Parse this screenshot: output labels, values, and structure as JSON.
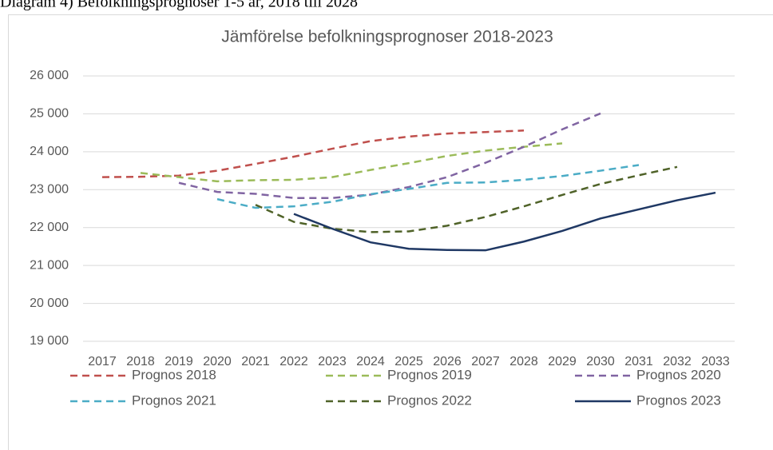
{
  "chart_data": {
    "type": "line",
    "caption": "Diagram 4) Befolkningsprognoser 1-5 år, 2018 till 2028",
    "title": "Jämförelse befolkningsprognoser 2018-2023",
    "categories": [
      "2017",
      "2018",
      "2019",
      "2020",
      "2021",
      "2022",
      "2023",
      "2024",
      "2025",
      "2026",
      "2027",
      "2028",
      "2029",
      "2030",
      "2031",
      "2032",
      "2033"
    ],
    "ylim": [
      19000,
      26000
    ],
    "yticks": [
      {
        "value": 19000,
        "label": "19 000"
      },
      {
        "value": 20000,
        "label": "20 000"
      },
      {
        "value": 21000,
        "label": "21 000"
      },
      {
        "value": 22000,
        "label": "22 000"
      },
      {
        "value": 23000,
        "label": "23 000"
      },
      {
        "value": 24000,
        "label": "24 000"
      },
      {
        "value": 25000,
        "label": "25 000"
      },
      {
        "value": 26000,
        "label": "26 000"
      }
    ],
    "grid": true,
    "legend": "bottom",
    "series": [
      {
        "name": "Prognos 2018",
        "color": "#c0504d",
        "dashed": true,
        "values": [
          23330,
          23340,
          23370,
          23500,
          23680,
          23870,
          24080,
          24280,
          24400,
          24480,
          24520,
          24560,
          null,
          null,
          null,
          null,
          null
        ]
      },
      {
        "name": "Prognos 2019",
        "color": "#9bbb59",
        "dashed": true,
        "values": [
          null,
          23440,
          23330,
          23220,
          23250,
          23260,
          23330,
          23520,
          23700,
          23890,
          24030,
          24130,
          24220,
          null,
          null,
          null,
          null
        ]
      },
      {
        "name": "Prognos 2020",
        "color": "#8064a2",
        "dashed": true,
        "values": [
          null,
          null,
          23180,
          22940,
          22890,
          22780,
          22780,
          22870,
          23070,
          23330,
          23710,
          24130,
          24590,
          25010,
          null,
          null,
          null
        ]
      },
      {
        "name": "Prognos 2021",
        "color": "#4bacc6",
        "dashed": true,
        "values": [
          null,
          null,
          null,
          22750,
          22520,
          22560,
          22680,
          22880,
          23020,
          23180,
          23190,
          23260,
          23360,
          23500,
          23650,
          null,
          null
        ]
      },
      {
        "name": "Prognos 2022",
        "color": "#4f6228",
        "dashed": true,
        "values": [
          null,
          null,
          null,
          null,
          22600,
          22150,
          21970,
          21880,
          21900,
          22050,
          22280,
          22560,
          22860,
          23150,
          23380,
          23600,
          null
        ]
      },
      {
        "name": "Prognos 2023",
        "color": "#1f3864",
        "dashed": false,
        "values": [
          null,
          null,
          null,
          null,
          null,
          22360,
          21970,
          21610,
          21440,
          21410,
          21400,
          21630,
          21910,
          22240,
          22480,
          22720,
          22920
        ]
      }
    ]
  }
}
